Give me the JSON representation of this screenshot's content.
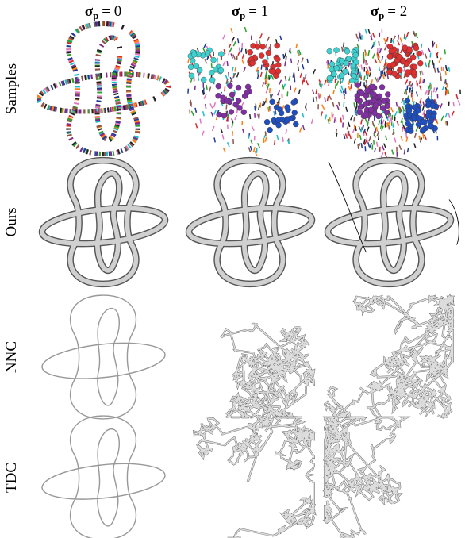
{
  "columns": [
    {
      "symbol": "σ",
      "subscript": "p",
      "relation": "= 0"
    },
    {
      "symbol": "σ",
      "subscript": "p",
      "relation": "= 1"
    },
    {
      "symbol": "σ",
      "subscript": "p",
      "relation": "= 2"
    }
  ],
  "rows": [
    "Samples",
    "Ours",
    "NNC",
    "TDC"
  ]
}
